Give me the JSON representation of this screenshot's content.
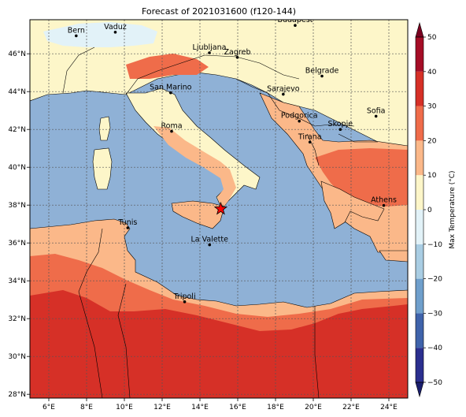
{
  "title": "Forecast of 2021031600 (f120-144)",
  "map": {
    "lon_range": [
      5,
      25
    ],
    "lat_range": [
      27.8,
      47.8
    ],
    "x_ticks": [
      {
        "value": 6,
        "label": "6°E"
      },
      {
        "value": 8,
        "label": "8°E"
      },
      {
        "value": 10,
        "label": "10°E"
      },
      {
        "value": 12,
        "label": "12°E"
      },
      {
        "value": 14,
        "label": "14°E"
      },
      {
        "value": 16,
        "label": "16°E"
      },
      {
        "value": 18,
        "label": "18°E"
      },
      {
        "value": 20,
        "label": "20°E"
      },
      {
        "value": 22,
        "label": "22°E"
      },
      {
        "value": 24,
        "label": "24°E"
      }
    ],
    "y_ticks": [
      {
        "value": 28,
        "label": "28°N"
      },
      {
        "value": 30,
        "label": "30°N"
      },
      {
        "value": 32,
        "label": "32°N"
      },
      {
        "value": 34,
        "label": "34°N"
      },
      {
        "value": 36,
        "label": "36°N"
      },
      {
        "value": 38,
        "label": "38°N"
      },
      {
        "value": 40,
        "label": "40°N"
      },
      {
        "value": 42,
        "label": "42°N"
      },
      {
        "value": 44,
        "label": "44°N"
      },
      {
        "value": 46,
        "label": "46°N"
      }
    ],
    "gridlines": true,
    "marker": {
      "type": "star",
      "lon": 15.1,
      "lat": 37.8,
      "color": "#ff0000"
    },
    "cities": [
      {
        "name": "Bern",
        "lon": 7.45,
        "lat": 46.95
      },
      {
        "name": "Vaduz",
        "lon": 9.52,
        "lat": 47.14
      },
      {
        "name": "Budapest",
        "lon": 19.04,
        "lat": 47.5
      },
      {
        "name": "Ljubljana",
        "lon": 14.5,
        "lat": 46.05
      },
      {
        "name": "Zagreb",
        "lon": 15.98,
        "lat": 45.81
      },
      {
        "name": "Belgrade",
        "lon": 20.46,
        "lat": 44.82
      },
      {
        "name": "San Marino",
        "lon": 12.45,
        "lat": 43.94
      },
      {
        "name": "Sarajevo",
        "lon": 18.41,
        "lat": 43.86
      },
      {
        "name": "Sofia",
        "lon": 23.32,
        "lat": 42.7
      },
      {
        "name": "Podgorica",
        "lon": 19.26,
        "lat": 42.44
      },
      {
        "name": "Skopje",
        "lon": 21.43,
        "lat": 42.0
      },
      {
        "name": "Roma",
        "lon": 12.5,
        "lat": 41.9
      },
      {
        "name": "Tirana",
        "lon": 19.82,
        "lat": 41.33
      },
      {
        "name": "Athens",
        "lon": 23.73,
        "lat": 37.98
      },
      {
        "name": "Tunis",
        "lon": 10.18,
        "lat": 36.8
      },
      {
        "name": "La Valette",
        "lon": 14.51,
        "lat": 35.9
      },
      {
        "name": "Tripoli",
        "lon": 13.19,
        "lat": 32.89
      }
    ]
  },
  "colorbar": {
    "label": "Max Temperature (°C)",
    "ticks": [
      {
        "value": 50,
        "label": "50"
      },
      {
        "value": 40,
        "label": "40"
      },
      {
        "value": 30,
        "label": "30"
      },
      {
        "value": 20,
        "label": "20"
      },
      {
        "value": 10,
        "label": "10"
      },
      {
        "value": 0,
        "label": "0"
      },
      {
        "value": -10,
        "label": "−10"
      },
      {
        "value": -20,
        "label": "−20"
      },
      {
        "value": -30,
        "label": "−30"
      },
      {
        "value": -40,
        "label": "−40"
      },
      {
        "value": -50,
        "label": "−50"
      }
    ],
    "levels": [
      {
        "from": -50,
        "to": -40,
        "color": "#2b2f8f"
      },
      {
        "from": -40,
        "to": -30,
        "color": "#3f63ab"
      },
      {
        "from": -30,
        "to": -20,
        "color": "#6f9fcc"
      },
      {
        "from": -20,
        "to": -10,
        "color": "#a9cde3"
      },
      {
        "from": -10,
        "to": 0,
        "color": "#e2f2f8"
      },
      {
        "from": 0,
        "to": 10,
        "color": "#fdf6c9"
      },
      {
        "from": 10,
        "to": 20,
        "color": "#fbb889"
      },
      {
        "from": 20,
        "to": 30,
        "color": "#ef6c4a"
      },
      {
        "from": 30,
        "to": 40,
        "color": "#d63027"
      },
      {
        "from": 40,
        "to": 50,
        "color": "#a50d26"
      }
    ],
    "extend_low_color": "#1a1f6e",
    "extend_high_color": "#7a0020"
  },
  "colors": {
    "sea": "#8fb1d6",
    "land_cool": "#fdf6c9",
    "land_mild": "#fbb889",
    "land_warm": "#ef6c4a",
    "land_hot": "#d63027",
    "snow": "#e2f2f8"
  }
}
